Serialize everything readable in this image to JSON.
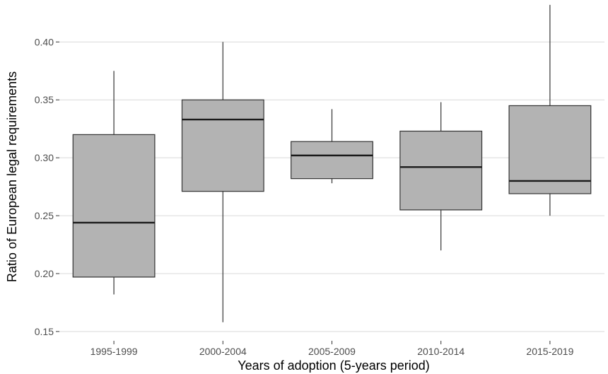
{
  "chart_data": {
    "type": "boxplot",
    "title": "",
    "xlabel": "Years of adoption (5-years period)",
    "ylabel": "Ratio of European legal requirements",
    "categories": [
      "1995-1999",
      "2000-2004",
      "2005-2009",
      "2010-2014",
      "2015-2019"
    ],
    "boxes": [
      {
        "category": "1995-1999",
        "whisker_low": 0.182,
        "q1": 0.197,
        "median": 0.244,
        "q3": 0.32,
        "whisker_high": 0.375
      },
      {
        "category": "2000-2004",
        "whisker_low": 0.158,
        "q1": 0.271,
        "median": 0.333,
        "q3": 0.35,
        "whisker_high": 0.4
      },
      {
        "category": "2005-2009",
        "whisker_low": 0.278,
        "q1": 0.282,
        "median": 0.302,
        "q3": 0.314,
        "whisker_high": 0.342
      },
      {
        "category": "2010-2014",
        "whisker_low": 0.22,
        "q1": 0.255,
        "median": 0.292,
        "q3": 0.323,
        "whisker_high": 0.348
      },
      {
        "category": "2015-2019",
        "whisker_low": 0.25,
        "q1": 0.269,
        "median": 0.28,
        "q3": 0.345,
        "whisker_high": 0.432
      }
    ],
    "y_ticks": [
      0.15,
      0.2,
      0.25,
      0.3,
      0.35,
      0.4
    ],
    "y_tick_labels": [
      "0.15",
      "0.20",
      "0.25",
      "0.30",
      "0.35",
      "0.40"
    ],
    "ylim": [
      0.142,
      0.435
    ],
    "grid": true,
    "legend": "none",
    "colors": {
      "box_fill": "#b3b3b3",
      "box_stroke": "#333333",
      "gridline": "#d9d9d9",
      "median": "#1a1a1a"
    }
  }
}
